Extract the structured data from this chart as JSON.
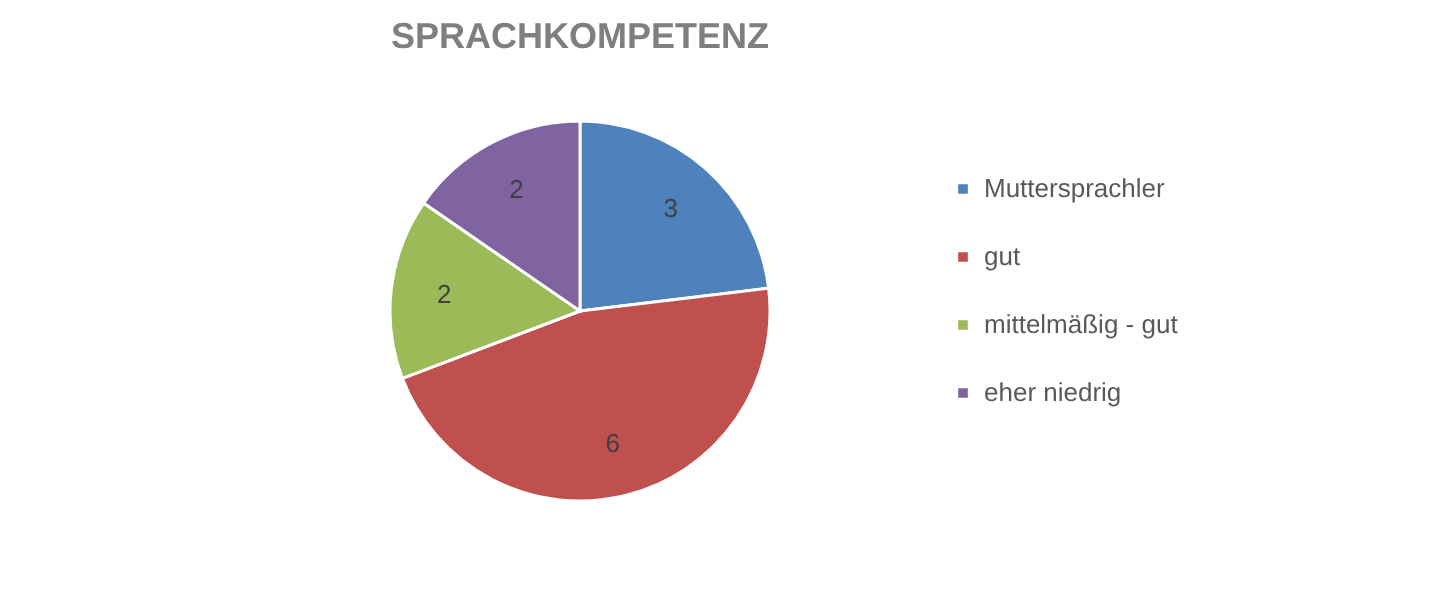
{
  "chart_data": {
    "type": "pie",
    "title": "SPRACHKOMPETENZ",
    "categories": [
      "Muttersprachler",
      "gut",
      "mittelmäßig - gut",
      "eher niedrig"
    ],
    "values": [
      3,
      6,
      2,
      2
    ],
    "colors": [
      "#4f81bd",
      "#c0504d",
      "#9bbb59",
      "#8064a2"
    ],
    "data_labels": true,
    "legend": "right"
  }
}
